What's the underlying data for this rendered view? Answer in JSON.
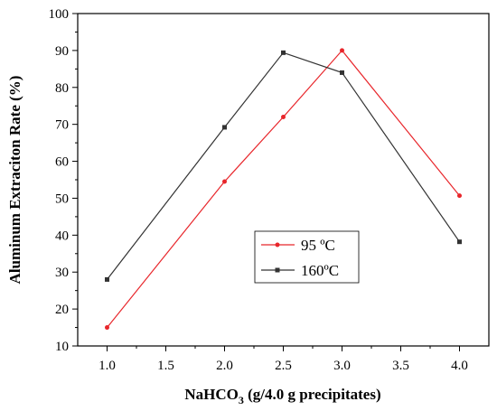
{
  "chart_data": {
    "type": "line",
    "xlabel": "NaHCO",
    "xlabel_sub": "3",
    "xlabel_tail": " (g/4.0 g precipitates)",
    "ylabel": "Aluminum Extraciton Rate (%)",
    "xlim": [
      0.75,
      4.25
    ],
    "ylim": [
      10,
      100
    ],
    "xticks": [
      1.0,
      1.5,
      2.0,
      2.5,
      3.0,
      3.5,
      4.0
    ],
    "xtick_labels": [
      "1.0",
      "1.5",
      "2.0",
      "2.5",
      "3.0",
      "3.5",
      "4.0"
    ],
    "yticks": [
      10,
      20,
      30,
      40,
      50,
      60,
      70,
      80,
      90,
      100
    ],
    "ytick_labels": [
      "10",
      "20",
      "30",
      "40",
      "50",
      "60",
      "70",
      "80",
      "90",
      "100"
    ],
    "grid": false,
    "legend_position": "lower-center",
    "series": [
      {
        "name": "95 ºC",
        "color": "#e8262b",
        "marker": "circle",
        "x": [
          1.0,
          2.0,
          2.5,
          3.0,
          4.0
        ],
        "y": [
          15.0,
          54.5,
          72.0,
          90.0,
          50.7
        ]
      },
      {
        "name": "160ºC",
        "color": "#333333",
        "marker": "square",
        "x": [
          1.0,
          2.0,
          2.5,
          3.0,
          4.0
        ],
        "y": [
          28.0,
          69.2,
          89.4,
          84.0,
          38.2
        ]
      }
    ]
  }
}
